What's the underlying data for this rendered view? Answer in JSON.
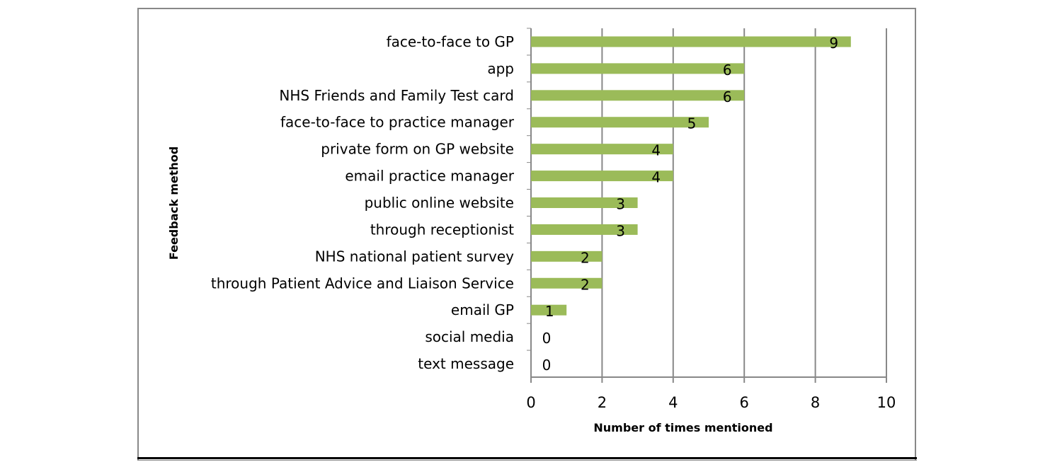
{
  "chart_data": {
    "type": "bar",
    "orientation": "horizontal",
    "title": "",
    "xlabel": "Number of times mentioned",
    "ylabel": "Feedback method",
    "xlim": [
      0,
      10
    ],
    "xticks": [
      0,
      2,
      4,
      6,
      8,
      10
    ],
    "grid": "vertical",
    "bar_color": "#9BBB59",
    "categories": [
      "face-to-face to GP",
      "app",
      "NHS Friends and Family Test card",
      "face-to-face to practice manager",
      "private form on GP website",
      "email practice manager",
      "public online website",
      "through receptionist",
      "NHS national patient survey",
      "through Patient Advice and Liaison Service",
      "email GP",
      "social media",
      "text message"
    ],
    "values": [
      9,
      6,
      6,
      5,
      4,
      4,
      3,
      3,
      2,
      2,
      1,
      0,
      0
    ]
  }
}
